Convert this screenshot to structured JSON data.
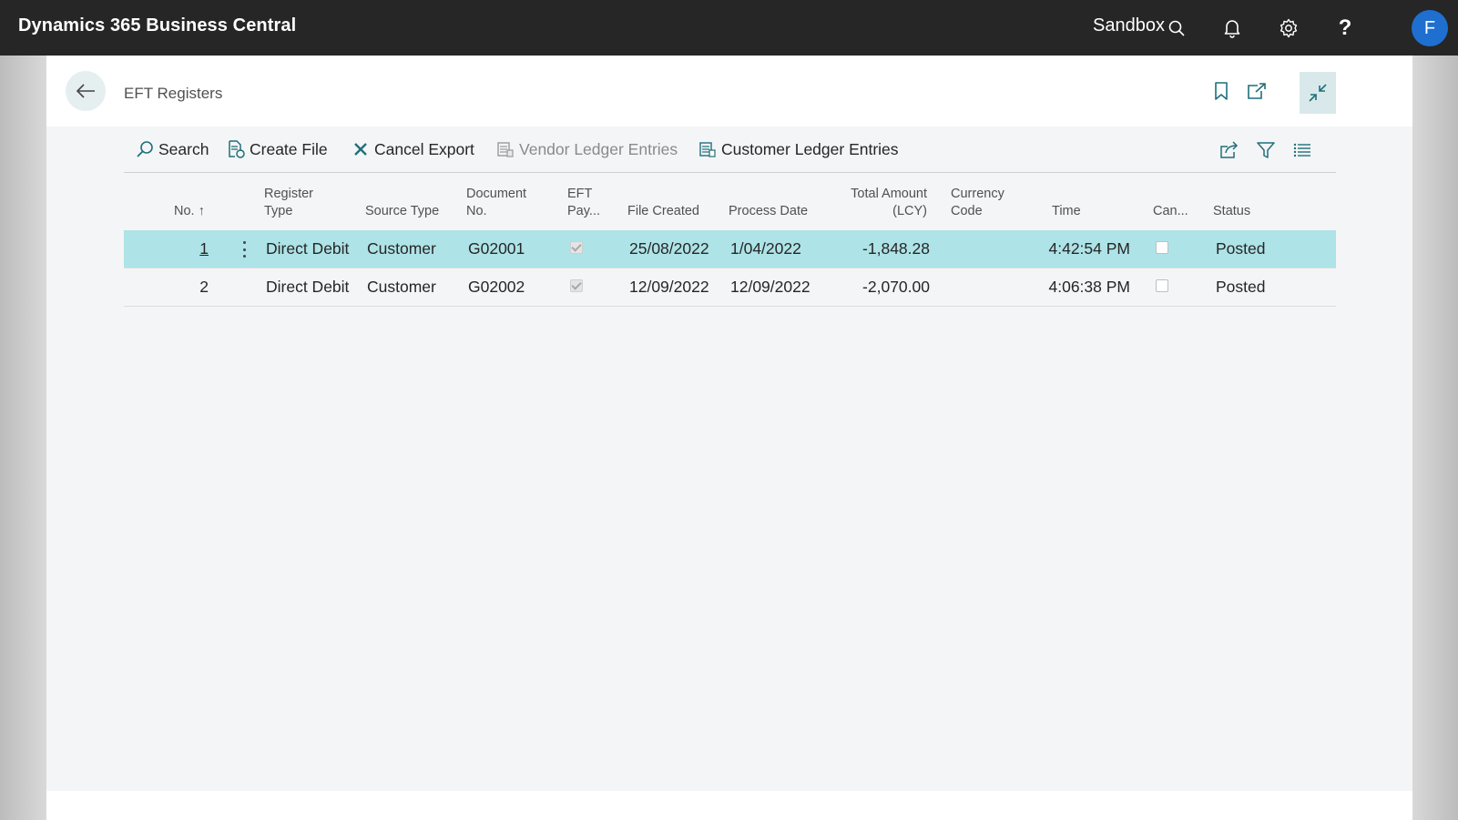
{
  "app": {
    "title": "Dynamics 365 Business Central",
    "environment": "Sandbox",
    "avatar_letter": "F"
  },
  "page": {
    "title": "EFT Registers"
  },
  "actions": {
    "search": "Search",
    "create_file": "Create File",
    "cancel_export": "Cancel Export",
    "vendor_ledger_entries": "Vendor Ledger Entries",
    "customer_ledger_entries": "Customer Ledger Entries"
  },
  "columns": {
    "no": "No.",
    "register_type_1": "Register",
    "register_type_2": "Type",
    "source_type": "Source Type",
    "document_no_1": "Document",
    "document_no_2": "No.",
    "eft_pay_1": "EFT",
    "eft_pay_2": "Pay...",
    "file_created": "File Created",
    "process_date": "Process Date",
    "total_amount_1": "Total Amount",
    "total_amount_2": "(LCY)",
    "currency_code_1": "Currency",
    "currency_code_2": "Code",
    "time": "Time",
    "cancelled": "Can...",
    "status": "Status"
  },
  "rows": [
    {
      "no": "1",
      "register_type": "Direct Debit",
      "source_type": "Customer",
      "document_no": "G02001",
      "eft_payment": true,
      "file_created": "25/08/2022",
      "process_date": "1/04/2022",
      "total_amount": "-1,848.28",
      "currency_code": "",
      "time": "4:42:54 PM",
      "cancelled": false,
      "status": "Posted",
      "selected": true
    },
    {
      "no": "2",
      "register_type": "Direct Debit",
      "source_type": "Customer",
      "document_no": "G02002",
      "eft_payment": true,
      "file_created": "12/09/2022",
      "process_date": "12/09/2022",
      "total_amount": "-2,070.00",
      "currency_code": "",
      "time": "4:06:38 PM",
      "cancelled": false,
      "status": "Posted",
      "selected": false
    }
  ],
  "colors": {
    "topbar": "#262626",
    "accent": "#aee3e7",
    "avatar": "#1e6fcf"
  }
}
